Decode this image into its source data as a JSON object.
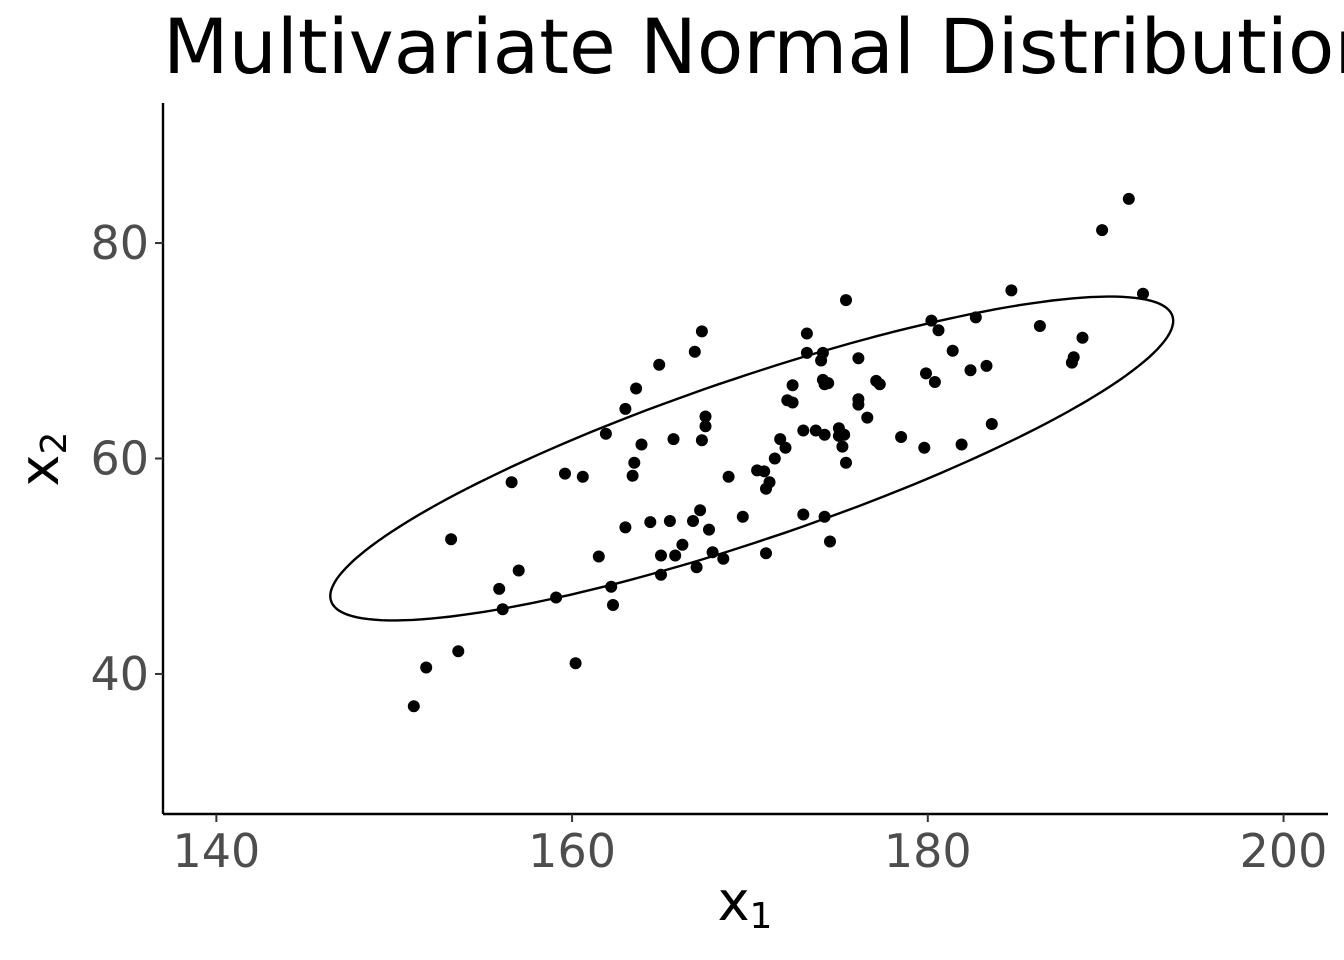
{
  "chart_data": {
    "type": "scatter",
    "title": "Multivariate Normal Distribution",
    "xlabel": {
      "base": "x",
      "sub": "1"
    },
    "ylabel": {
      "base": "x",
      "sub": "2"
    },
    "xlim": [
      137,
      202.5
    ],
    "ylim": [
      27,
      93
    ],
    "xticks": [
      140,
      160,
      180,
      200
    ],
    "yticks": [
      40,
      60,
      80
    ],
    "grid": false,
    "legend": "none",
    "point_color": "#000000",
    "ellipse": {
      "center": [
        170.1,
        60.0
      ],
      "semi_axes": [
        27.2,
        6.9
      ],
      "angle_deg": 30.5,
      "color": "#000000"
    },
    "points": [
      [
        151.1,
        37.0
      ],
      [
        151.8,
        40.6
      ],
      [
        153.2,
        52.5
      ],
      [
        153.6,
        42.1
      ],
      [
        155.9,
        47.9
      ],
      [
        156.1,
        46.0
      ],
      [
        156.6,
        57.8
      ],
      [
        157.0,
        49.6
      ],
      [
        159.1,
        47.1
      ],
      [
        159.6,
        58.6
      ],
      [
        160.2,
        41.0
      ],
      [
        160.6,
        58.3
      ],
      [
        161.5,
        50.9
      ],
      [
        161.9,
        62.3
      ],
      [
        162.2,
        48.1
      ],
      [
        162.3,
        46.4
      ],
      [
        163.0,
        64.6
      ],
      [
        163.0,
        53.6
      ],
      [
        163.4,
        58.4
      ],
      [
        163.5,
        59.6
      ],
      [
        163.6,
        66.5
      ],
      [
        163.9,
        61.3
      ],
      [
        164.4,
        54.1
      ],
      [
        164.9,
        68.7
      ],
      [
        165.0,
        51.0
      ],
      [
        165.0,
        49.2
      ],
      [
        165.5,
        54.2
      ],
      [
        165.7,
        61.8
      ],
      [
        165.8,
        51.0
      ],
      [
        166.2,
        52.0
      ],
      [
        166.8,
        54.2
      ],
      [
        166.9,
        69.9
      ],
      [
        167.0,
        49.9
      ],
      [
        167.2,
        55.2
      ],
      [
        167.3,
        71.8
      ],
      [
        167.3,
        61.7
      ],
      [
        167.5,
        63.9
      ],
      [
        167.5,
        63.0
      ],
      [
        167.7,
        53.4
      ],
      [
        167.9,
        51.3
      ],
      [
        168.5,
        50.7
      ],
      [
        168.8,
        58.3
      ],
      [
        169.6,
        54.6
      ],
      [
        170.4,
        58.9
      ],
      [
        170.8,
        58.8
      ],
      [
        170.9,
        51.2
      ],
      [
        170.9,
        57.2
      ],
      [
        171.1,
        57.8
      ],
      [
        171.4,
        60.0
      ],
      [
        171.7,
        61.8
      ],
      [
        172.0,
        61.0
      ],
      [
        172.1,
        65.4
      ],
      [
        172.4,
        66.8
      ],
      [
        172.4,
        65.2
      ],
      [
        173.0,
        54.8
      ],
      [
        173.0,
        62.6
      ],
      [
        173.2,
        71.6
      ],
      [
        173.2,
        69.8
      ],
      [
        173.7,
        62.6
      ],
      [
        174.0,
        69.1
      ],
      [
        174.1,
        67.3
      ],
      [
        174.1,
        69.8
      ],
      [
        174.2,
        66.9
      ],
      [
        174.2,
        54.6
      ],
      [
        174.2,
        62.2
      ],
      [
        174.4,
        67.0
      ],
      [
        174.5,
        52.3
      ],
      [
        175.0,
        62.1
      ],
      [
        175.0,
        62.8
      ],
      [
        175.2,
        61.1
      ],
      [
        175.3,
        62.2
      ],
      [
        175.4,
        59.6
      ],
      [
        175.4,
        74.7
      ],
      [
        176.1,
        69.3
      ],
      [
        176.1,
        65.5
      ],
      [
        176.1,
        65.0
      ],
      [
        176.6,
        63.8
      ],
      [
        177.1,
        67.2
      ],
      [
        177.3,
        66.9
      ],
      [
        178.5,
        62.0
      ],
      [
        179.8,
        61.0
      ],
      [
        179.9,
        67.9
      ],
      [
        180.2,
        72.8
      ],
      [
        180.4,
        67.1
      ],
      [
        180.6,
        71.9
      ],
      [
        181.4,
        70.0
      ],
      [
        181.9,
        61.3
      ],
      [
        182.4,
        68.2
      ],
      [
        182.7,
        73.1
      ],
      [
        183.3,
        68.6
      ],
      [
        183.6,
        63.2
      ],
      [
        184.7,
        75.6
      ],
      [
        186.3,
        72.3
      ],
      [
        188.1,
        68.9
      ],
      [
        188.2,
        69.4
      ],
      [
        188.7,
        71.2
      ],
      [
        189.8,
        81.2
      ],
      [
        191.3,
        84.1
      ],
      [
        192.1,
        75.3
      ]
    ]
  }
}
